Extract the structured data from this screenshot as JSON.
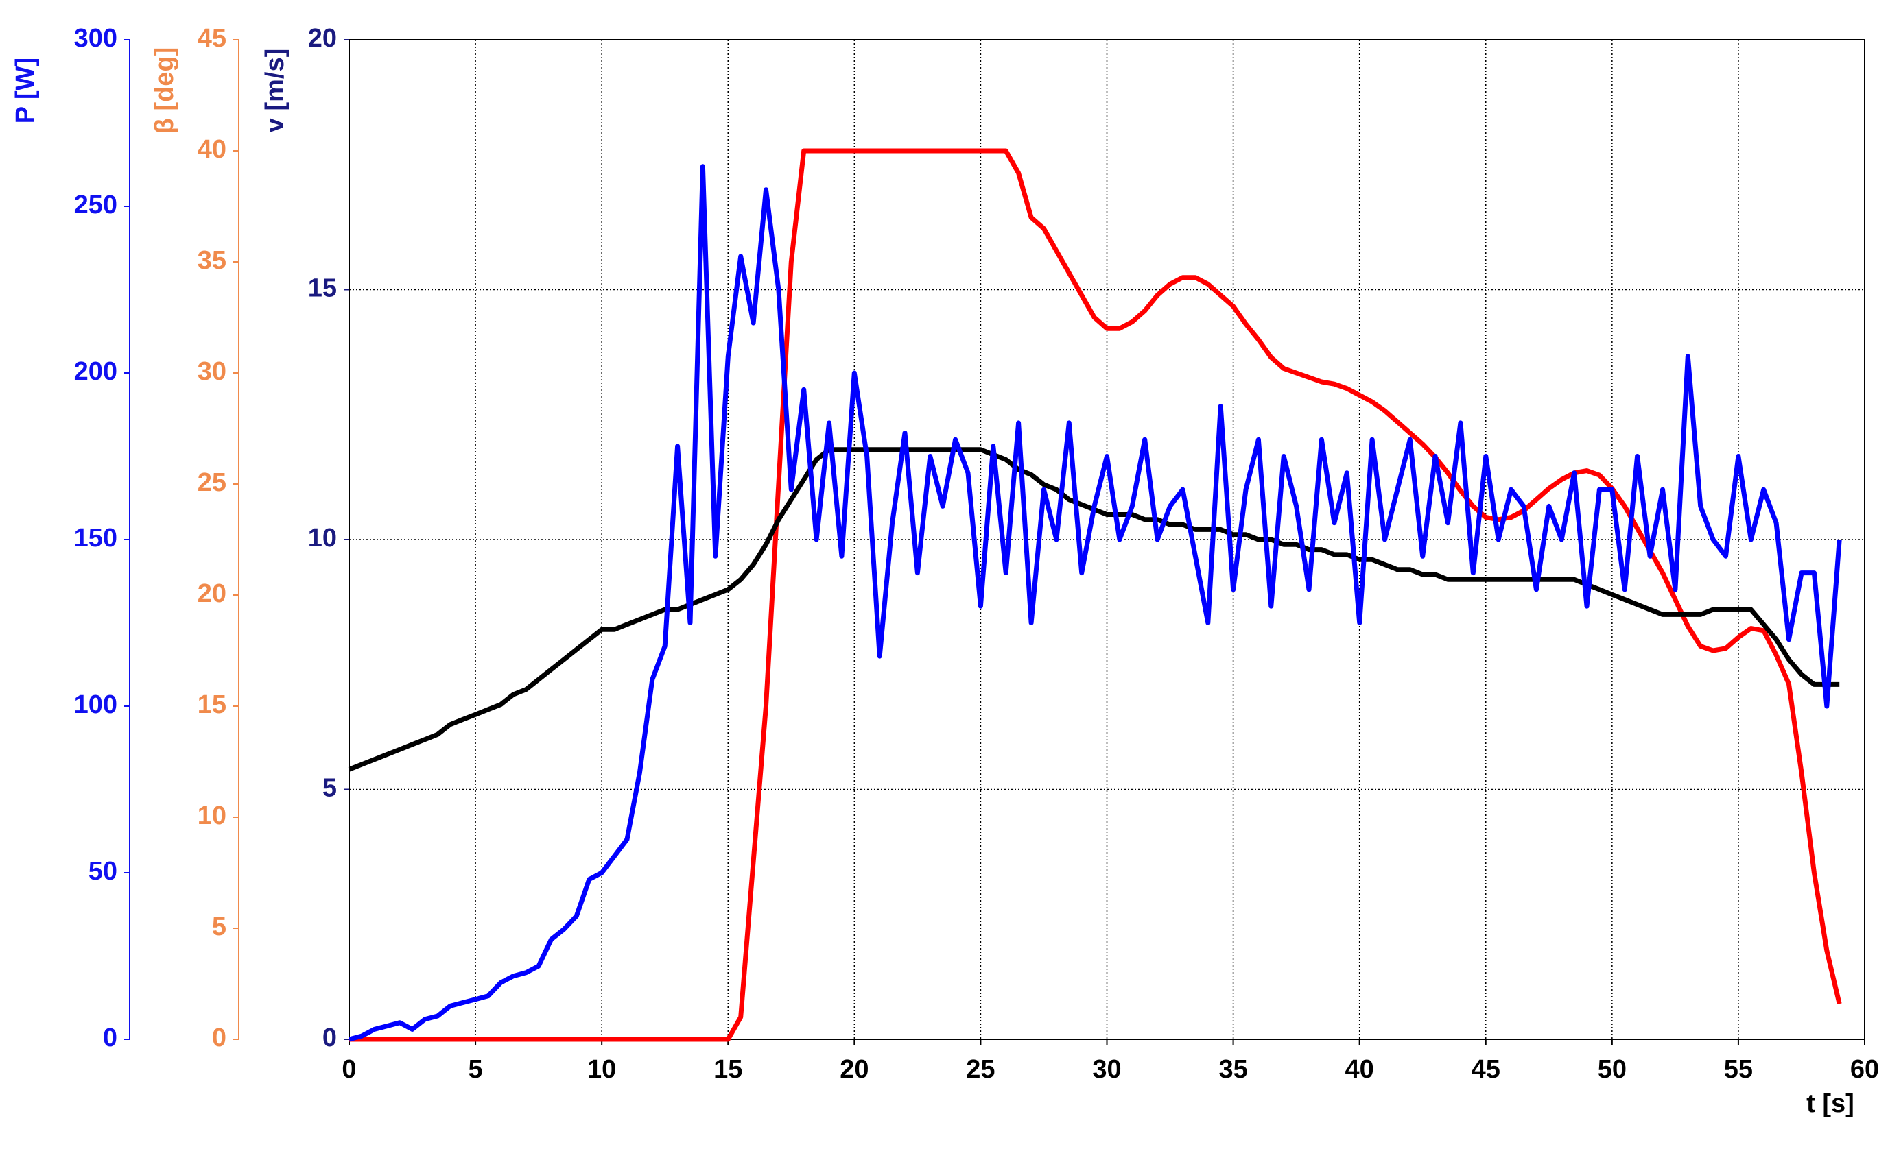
{
  "chart_data": {
    "type": "line",
    "xlabel": "t [s]",
    "xlim": [
      0,
      60
    ],
    "xticks": [
      0,
      5,
      10,
      15,
      20,
      25,
      30,
      35,
      40,
      45,
      50,
      55,
      60
    ],
    "ylabel": "v [m/s]",
    "ylim": [
      0,
      20
    ],
    "yticks": [
      0,
      5,
      10,
      15,
      20
    ],
    "ycolor": "#1a1a80",
    "y2label": "P [W]",
    "y2lim": [
      0,
      300
    ],
    "y2ticks": [
      0,
      50,
      100,
      150,
      200,
      250,
      300
    ],
    "y2color": "#1010f0",
    "y3label": "β [deg]",
    "y3lim": [
      0,
      45
    ],
    "y3ticks": [
      0,
      5,
      10,
      15,
      20,
      25,
      30,
      35,
      40,
      45
    ],
    "y3color": "#f08a4b",
    "grid": true,
    "x": [
      0,
      0.5,
      1,
      1.5,
      2,
      2.5,
      3,
      3.5,
      4,
      4.5,
      5,
      5.5,
      6,
      6.5,
      7,
      7.5,
      8,
      8.5,
      9,
      9.5,
      10,
      10.5,
      11,
      11.5,
      12,
      12.5,
      13,
      13.5,
      14,
      14.5,
      15,
      15.5,
      16,
      16.5,
      17,
      17.5,
      18,
      18.5,
      19,
      19.5,
      20,
      20.5,
      21,
      21.5,
      22,
      22.5,
      23,
      23.5,
      24,
      24.5,
      25,
      25.5,
      26,
      26.5,
      27,
      27.5,
      28,
      28.5,
      29,
      29.5,
      30,
      30.5,
      31,
      31.5,
      32,
      32.5,
      33,
      33.5,
      34,
      34.5,
      35,
      35.5,
      36,
      36.5,
      37,
      37.5,
      38,
      38.5,
      39,
      39.5,
      40,
      40.5,
      41,
      41.5,
      42,
      42.5,
      43,
      43.5,
      44,
      44.5,
      45,
      45.5,
      46,
      46.5,
      47,
      47.5,
      48,
      48.5,
      49,
      49.5,
      50,
      50.5,
      51,
      51.5,
      52,
      52.5,
      53,
      53.5,
      54,
      54.5,
      55,
      55.5,
      56,
      56.5,
      57,
      57.5,
      58,
      58.5,
      59
    ],
    "series": [
      {
        "color": "#ff0000",
        "axis": "y3",
        "values": [
          0,
          0,
          0,
          0,
          0,
          0,
          0,
          0,
          0,
          0,
          0,
          0,
          0,
          0,
          0,
          0,
          0,
          0,
          0,
          0,
          0,
          0,
          0,
          0,
          0,
          0,
          0,
          0,
          0,
          0,
          0,
          1,
          8,
          15,
          25,
          35,
          40,
          40,
          40,
          40,
          40,
          40,
          40,
          40,
          40,
          40,
          40,
          40,
          40,
          40,
          40,
          40,
          40,
          39,
          37,
          36.5,
          35.5,
          34.5,
          33.5,
          32.5,
          32,
          32,
          32.3,
          32.8,
          33.5,
          34,
          34.3,
          34.3,
          34,
          33.5,
          33,
          32.2,
          31.5,
          30.7,
          30.2,
          30,
          29.8,
          29.6,
          29.5,
          29.3,
          29,
          28.7,
          28.3,
          27.8,
          27.3,
          26.8,
          26.2,
          25.5,
          24.7,
          24,
          23.5,
          23.4,
          23.5,
          23.8,
          24.3,
          24.8,
          25.2,
          25.5,
          25.6,
          25.4,
          24.8,
          24,
          23,
          22,
          21,
          19.8,
          18.6,
          17.7,
          17.5,
          17.6,
          18.1,
          18.5,
          18.4,
          17.3,
          16,
          12,
          7.5,
          4,
          1.6
        ]
      },
      {
        "color": "#000000",
        "axis": "y",
        "values": [
          5.4,
          5.5,
          5.6,
          5.7,
          5.8,
          5.9,
          6.0,
          6.1,
          6.3,
          6.4,
          6.5,
          6.6,
          6.7,
          6.9,
          7.0,
          7.2,
          7.4,
          7.6,
          7.8,
          8.0,
          8.2,
          8.2,
          8.3,
          8.4,
          8.5,
          8.6,
          8.6,
          8.7,
          8.8,
          8.9,
          9.0,
          9.2,
          9.5,
          9.9,
          10.4,
          10.8,
          11.2,
          11.6,
          11.8,
          11.8,
          11.8,
          11.8,
          11.8,
          11.8,
          11.8,
          11.8,
          11.8,
          11.8,
          11.8,
          11.8,
          11.8,
          11.7,
          11.6,
          11.4,
          11.3,
          11.1,
          11.0,
          10.8,
          10.7,
          10.6,
          10.5,
          10.5,
          10.5,
          10.4,
          10.4,
          10.3,
          10.3,
          10.2,
          10.2,
          10.2,
          10.1,
          10.1,
          10.0,
          10.0,
          9.9,
          9.9,
          9.8,
          9.8,
          9.7,
          9.7,
          9.6,
          9.6,
          9.5,
          9.4,
          9.4,
          9.3,
          9.3,
          9.2,
          9.2,
          9.2,
          9.2,
          9.2,
          9.2,
          9.2,
          9.2,
          9.2,
          9.2,
          9.2,
          9.1,
          9.0,
          8.9,
          8.8,
          8.7,
          8.6,
          8.5,
          8.5,
          8.5,
          8.5,
          8.6,
          8.6,
          8.6,
          8.6,
          8.3,
          8.0,
          7.6,
          7.3,
          7.1,
          7.1,
          7.1
        ]
      },
      {
        "color": "#0000ff",
        "axis": "y2",
        "values": [
          0,
          1,
          3,
          4,
          5,
          3,
          6,
          7,
          10,
          11,
          12,
          13,
          17,
          19,
          20,
          22,
          30,
          33,
          37,
          48,
          50,
          55,
          60,
          80,
          108,
          118,
          178,
          125,
          262,
          145,
          205,
          235,
          215,
          255,
          225,
          165,
          195,
          150,
          185,
          145,
          200,
          175,
          115,
          155,
          182,
          140,
          175,
          160,
          180,
          170,
          130,
          178,
          140,
          185,
          125,
          165,
          150,
          185,
          140,
          160,
          175,
          150,
          160,
          180,
          150,
          160,
          165,
          145,
          125,
          190,
          135,
          165,
          180,
          130,
          175,
          160,
          135,
          180,
          155,
          170,
          125,
          180,
          150,
          165,
          180,
          145,
          175,
          155,
          185,
          140,
          175,
          150,
          165,
          160,
          135,
          160,
          150,
          170,
          130,
          165,
          165,
          135,
          175,
          145,
          165,
          135,
          205,
          160,
          150,
          145,
          175,
          150,
          165,
          155,
          120,
          140,
          140,
          100,
          150
        ]
      }
    ]
  }
}
